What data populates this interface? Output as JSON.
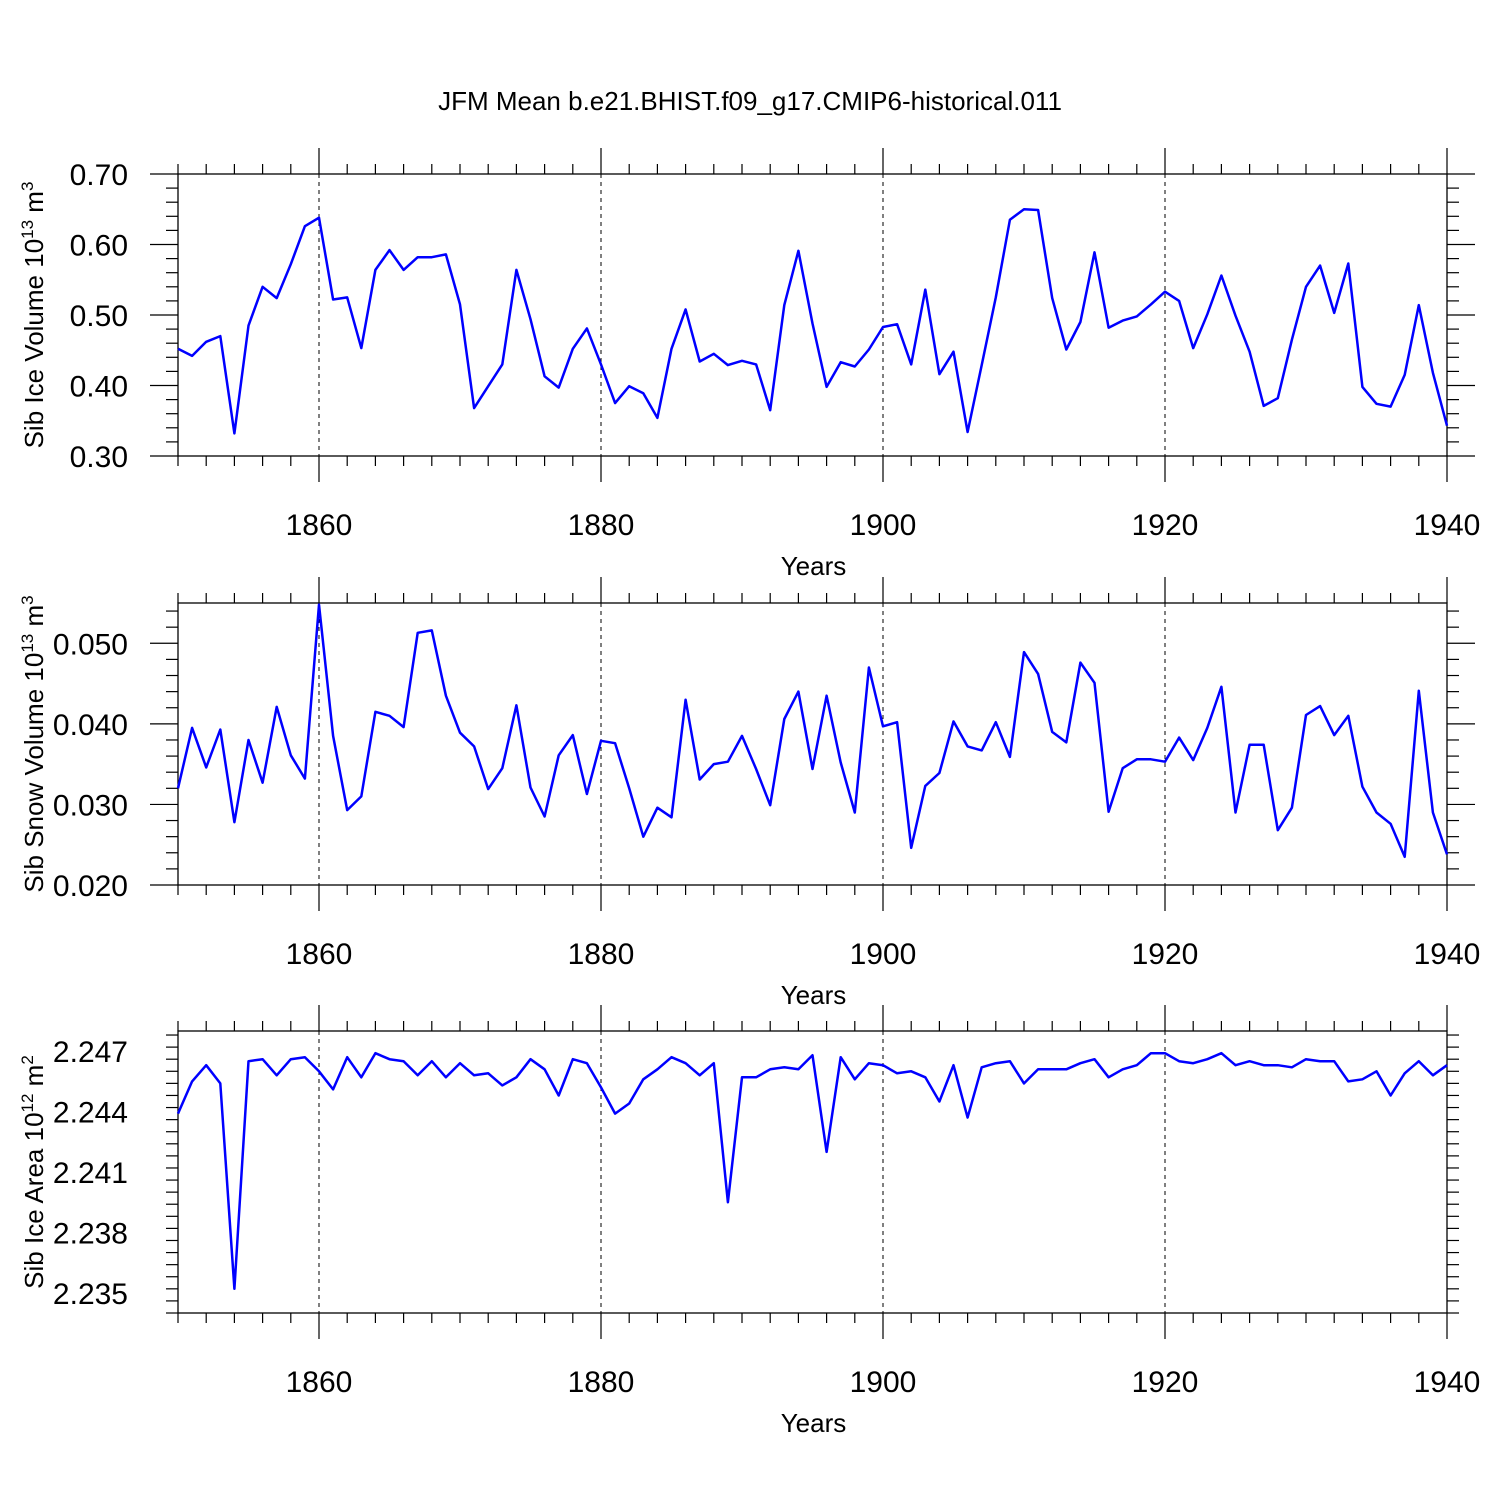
{
  "chart_data": [
    {
      "type": "line",
      "title": "JFM Mean b.e21.BHIST.f09_g17.CMIP6-historical.011",
      "xlabel": "Years",
      "ylabel_main": "Sib Ice Volume 10",
      "ylabel_exp": "13",
      "ylabel_unit": " m",
      "ylabel_unit_exp": "3",
      "xlim": [
        1850,
        1940
      ],
      "ylim": [
        0.3,
        0.7
      ],
      "xticks": [
        "1860",
        "1880",
        "1900",
        "1920",
        "1940"
      ],
      "xtick_values": [
        1860,
        1880,
        1900,
        1920,
        1940
      ],
      "yticks": [
        "0.30",
        "0.40",
        "0.50",
        "0.60",
        "0.70"
      ],
      "ytick_values": [
        0.3,
        0.4,
        0.5,
        0.6,
        0.7
      ],
      "x_start": 1850,
      "series": [
        {
          "name": "Sib Ice Volume",
          "color": "#0000ff",
          "values": [
            0.452,
            0.442,
            0.462,
            0.47,
            0.332,
            0.485,
            0.54,
            0.524,
            0.572,
            0.626,
            0.638,
            0.522,
            0.525,
            0.453,
            0.564,
            0.592,
            0.564,
            0.582,
            0.582,
            0.586,
            0.515,
            0.368,
            0.399,
            0.43,
            0.564,
            0.494,
            0.413,
            0.397,
            0.452,
            0.481,
            0.43,
            0.375,
            0.399,
            0.389,
            0.354,
            0.452,
            0.508,
            0.434,
            0.445,
            0.429,
            0.435,
            0.43,
            0.365,
            0.514,
            0.591,
            0.488,
            0.398,
            0.433,
            0.427,
            0.451,
            0.483,
            0.487,
            0.43,
            0.536,
            0.416,
            0.448,
            0.334,
            0.429,
            0.525,
            0.635,
            0.65,
            0.649,
            0.524,
            0.451,
            0.49,
            0.589,
            0.482,
            0.492,
            0.498,
            0.515,
            0.533,
            0.52,
            0.453,
            0.501,
            0.556,
            0.499,
            0.448,
            0.371,
            0.382,
            0.465,
            0.54,
            0.57,
            0.503,
            0.573,
            0.398,
            0.374,
            0.37,
            0.415,
            0.514,
            0.418,
            0.343
          ]
        }
      ]
    },
    {
      "type": "line",
      "xlabel": "Years",
      "ylabel_main": "Sib Snow Volume 10",
      "ylabel_exp": "13",
      "ylabel_unit": " m",
      "ylabel_unit_exp": "3",
      "xlim": [
        1850,
        1940
      ],
      "ylim": [
        0.02,
        0.055
      ],
      "xticks": [
        "1860",
        "1880",
        "1900",
        "1920",
        "1940"
      ],
      "xtick_values": [
        1860,
        1880,
        1900,
        1920,
        1940
      ],
      "yticks": [
        "0.020",
        "0.030",
        "0.040",
        "0.050"
      ],
      "ytick_values": [
        0.02,
        0.03,
        0.04,
        0.05
      ],
      "x_start": 1850,
      "series": [
        {
          "name": "Sib Snow Volume",
          "color": "#0000ff",
          "values": [
            0.032,
            0.0395,
            0.0346,
            0.0393,
            0.0278,
            0.038,
            0.0327,
            0.0421,
            0.0361,
            0.0332,
            0.0548,
            0.0385,
            0.0293,
            0.031,
            0.0415,
            0.041,
            0.0396,
            0.0513,
            0.0516,
            0.0435,
            0.0389,
            0.0372,
            0.0319,
            0.0345,
            0.0423,
            0.0321,
            0.0285,
            0.0361,
            0.0386,
            0.0313,
            0.0379,
            0.0376,
            0.032,
            0.026,
            0.0296,
            0.0284,
            0.043,
            0.0331,
            0.035,
            0.0353,
            0.0385,
            0.0344,
            0.0299,
            0.0406,
            0.044,
            0.0344,
            0.0435,
            0.0352,
            0.029,
            0.047,
            0.0397,
            0.0402,
            0.0246,
            0.0323,
            0.0339,
            0.0403,
            0.0372,
            0.0367,
            0.0402,
            0.0359,
            0.0489,
            0.0462,
            0.039,
            0.0377,
            0.0476,
            0.0451,
            0.0291,
            0.0345,
            0.0356,
            0.0356,
            0.0353,
            0.0383,
            0.0355,
            0.0395,
            0.0446,
            0.029,
            0.0374,
            0.0374,
            0.0268,
            0.0296,
            0.0411,
            0.0422,
            0.0386,
            0.041,
            0.0322,
            0.029,
            0.0276,
            0.0235,
            0.0441,
            0.029,
            0.0238
          ]
        }
      ]
    },
    {
      "type": "line",
      "xlabel": "Years",
      "ylabel_main": "Sib Ice Area 10",
      "ylabel_exp": "12",
      "ylabel_unit": " m",
      "ylabel_unit_exp": "2",
      "xlim": [
        1850,
        1940
      ],
      "ylim": [
        2.234,
        2.248
      ],
      "xticks": [
        "1860",
        "1880",
        "1900",
        "1920",
        "1940"
      ],
      "xtick_values": [
        1860,
        1880,
        1900,
        1920,
        1940
      ],
      "yticks": [
        "2.235",
        "2.238",
        "2.241",
        "2.244",
        "2.247"
      ],
      "ytick_values": [
        2.235,
        2.238,
        2.241,
        2.244,
        2.247
      ],
      "x_start": 1850,
      "series": [
        {
          "name": "Sib Ice Area",
          "color": "#0000ff",
          "values": [
            2.2439,
            2.2455,
            2.2463,
            2.2454,
            2.2352,
            2.2465,
            2.2466,
            2.2458,
            2.2466,
            2.2467,
            2.246,
            2.2451,
            2.2467,
            2.2457,
            2.2469,
            2.2466,
            2.2465,
            2.2458,
            2.2465,
            2.2457,
            2.2464,
            2.2458,
            2.2459,
            2.2453,
            2.2457,
            2.2466,
            2.2461,
            2.2448,
            2.2466,
            2.2464,
            2.2452,
            2.2439,
            2.2444,
            2.2456,
            2.2461,
            2.2467,
            2.2464,
            2.2458,
            2.2464,
            2.2395,
            2.2457,
            2.2457,
            2.2461,
            2.2462,
            2.2461,
            2.2468,
            2.242,
            2.2467,
            2.2456,
            2.2464,
            2.2463,
            2.2459,
            2.246,
            2.2457,
            2.2445,
            2.2463,
            2.2437,
            2.2462,
            2.2464,
            2.2465,
            2.2454,
            2.2461,
            2.2461,
            2.2461,
            2.2464,
            2.2466,
            2.2457,
            2.2461,
            2.2463,
            2.2469,
            2.2469,
            2.2465,
            2.2464,
            2.2466,
            2.2469,
            2.2463,
            2.2465,
            2.2463,
            2.2463,
            2.2462,
            2.2466,
            2.2465,
            2.2465,
            2.2455,
            2.2456,
            2.246,
            2.2448,
            2.2459,
            2.2465,
            2.2458,
            2.2463
          ]
        }
      ]
    }
  ]
}
